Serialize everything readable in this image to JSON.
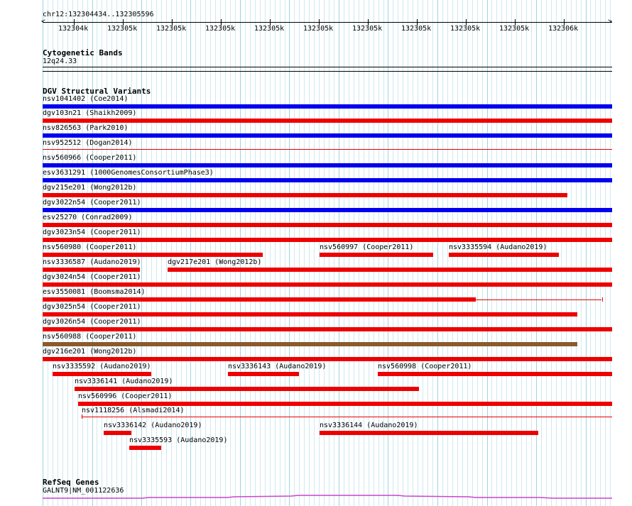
{
  "ruler": {
    "location": "chr12:132304434..132305596",
    "ticks": [
      "132304k",
      "132305k",
      "132305k",
      "132305k",
      "132305k",
      "132305k",
      "132305k",
      "132305k",
      "132305k",
      "132305k",
      "132306k"
    ]
  },
  "cytoband": {
    "title": "Cytogenetic Bands",
    "band": "12q24.33"
  },
  "dgv": {
    "title": "DGV Structural Variants",
    "colors": {
      "gain": "#0000ee",
      "loss": "#ee0000",
      "both": "#8b5a2b"
    },
    "features": [
      {
        "label": "nsv1041402 (Coe2014)",
        "type": "gain",
        "row": 0,
        "start": 0,
        "end": 1
      },
      {
        "label": "dgv103n21 (Shaikh2009)",
        "type": "loss",
        "row": 1,
        "start": 0,
        "end": 1
      },
      {
        "label": "nsv826563 (Park2010)",
        "type": "gain",
        "row": 2,
        "start": 0,
        "end": 1
      },
      {
        "label": "nsv952512 (Dogan2014)",
        "type": "loss",
        "row": 3,
        "start": 0,
        "end": 1,
        "style": "line"
      },
      {
        "label": "nsv560966 (Cooper2011)",
        "type": "gain",
        "row": 4,
        "start": 0,
        "end": 1
      },
      {
        "label": "esv3631291 (1000GenomesConsortiumPhase3)",
        "type": "gain",
        "row": 5,
        "start": 0,
        "end": 1
      },
      {
        "label": "dgv215e201 (Wong2012b)",
        "type": "loss",
        "row": 6,
        "start": 0,
        "end": 0.922
      },
      {
        "label": "dgv3022n54 (Cooper2011)",
        "type": "gain",
        "row": 7,
        "start": 0,
        "end": 1
      },
      {
        "label": "esv25270 (Conrad2009)",
        "type": "loss",
        "row": 8,
        "start": 0,
        "end": 1
      },
      {
        "label": "dgv3023n54 (Cooper2011)",
        "type": "loss",
        "row": 9,
        "start": 0,
        "end": 1
      },
      {
        "label": "nsv560980 (Cooper2011)",
        "type": "loss",
        "row": 10,
        "start": 0,
        "end": 0.386
      },
      {
        "label": "nsv560997 (Cooper2011)",
        "type": "loss",
        "row": 10,
        "start": 0.486,
        "end": 0.686
      },
      {
        "label": "nsv3335594 (Audano2019)",
        "type": "loss",
        "row": 10,
        "start": 0.713,
        "end": 0.906
      },
      {
        "label": "nsv3336587 (Audano2019)",
        "type": "loss",
        "row": 11,
        "start": 0,
        "end": 0.171
      },
      {
        "label": "dgv217e201 (Wong2012b)",
        "type": "loss",
        "row": 11,
        "start": 0.219,
        "end": 1
      },
      {
        "label": "dgv3024n54 (Cooper2011)",
        "type": "loss",
        "row": 12,
        "start": 0,
        "end": 1
      },
      {
        "label": "esv3550081 (Boomsma2014)",
        "type": "loss",
        "row": 13,
        "start": 0,
        "end": 0.761,
        "tail_end": 0.982
      },
      {
        "label": "dgv3025n54 (Cooper2011)",
        "type": "loss",
        "row": 14,
        "start": 0,
        "end": 0.939
      },
      {
        "label": "dgv3026n54 (Cooper2011)",
        "type": "loss",
        "row": 15,
        "start": 0,
        "end": 1
      },
      {
        "label": "nsv560988 (Cooper2011)",
        "type": "both",
        "row": 16,
        "start": 0,
        "end": 0.939
      },
      {
        "label": "dgv216e201 (Wong2012b)",
        "type": "loss",
        "row": 17,
        "start": 0,
        "end": 1
      },
      {
        "label": "nsv3335592 (Audano2019)",
        "type": "loss",
        "row": 18,
        "start": 0.017,
        "end": 0.19
      },
      {
        "label": "nsv3336143 (Audano2019)",
        "type": "loss",
        "row": 18,
        "start": 0.326,
        "end": 0.451
      },
      {
        "label": "nsv560998 (Cooper2011)",
        "type": "loss",
        "row": 18,
        "start": 0.588,
        "end": 1
      },
      {
        "label": "nsv3336141 (Audano2019)",
        "type": "loss",
        "row": 19,
        "start": 0.056,
        "end": 0.661
      },
      {
        "label": "nsv560996 (Cooper2011)",
        "type": "loss",
        "row": 20,
        "start": 0.062,
        "end": 1
      },
      {
        "label": "nsv1118256 (Alsmadi2014)",
        "type": "loss",
        "row": 21,
        "start": 0.068,
        "end": 1,
        "style": "line"
      },
      {
        "label": "nsv3336142 (Audano2019)",
        "type": "loss",
        "row": 22,
        "start": 0.107,
        "end": 0.156
      },
      {
        "label": "nsv3336144 (Audano2019)",
        "type": "loss",
        "row": 22,
        "start": 0.486,
        "end": 0.87
      },
      {
        "label": "nsv3335593 (Audano2019)",
        "type": "loss",
        "row": 23,
        "start": 0.152,
        "end": 0.208
      }
    ]
  },
  "refseq": {
    "title": "RefSeq Genes",
    "gene": "GALNT9|NM_001122636",
    "color": "#cc44cc"
  }
}
